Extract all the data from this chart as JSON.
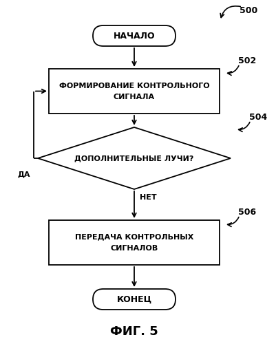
{
  "title": "ФИГ. 5",
  "fig_number": "500",
  "label_502": "502",
  "label_504": "504",
  "label_506": "506",
  "start_text": "НАЧАЛО",
  "box1_line1": "ФОРМИРОВАНИЕ КОНТРОЛЬНОГО",
  "box1_line2": "СИГНАЛА",
  "diamond_text": "ДОПОЛНИТЕЛЬНЫЕ ЛУЧИ?",
  "yes_label": "ДА",
  "no_label": "НЕТ",
  "box2_line1": "ПЕРЕДАЧА КОНТРОЛЬНЫХ",
  "box2_line2": "СИГНАЛОВ",
  "end_text": "КОНЕЦ",
  "bg_color": "#ffffff",
  "shape_fill": "#ffffff",
  "shape_edge": "#000000",
  "text_color": "#000000",
  "arrow_color": "#000000"
}
